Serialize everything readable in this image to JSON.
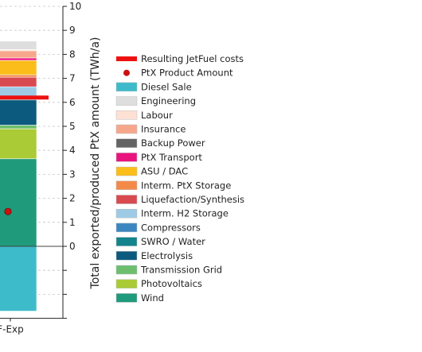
{
  "chart_data": {
    "type": "bar",
    "stacked": true,
    "ylabel": "Total exported/produced PtX amount (TWh/a)",
    "ylim": [
      -3,
      10
    ],
    "yticks": [
      0,
      1,
      2,
      3,
      4,
      5,
      6,
      7,
      8,
      9,
      10
    ],
    "grid": "dashed-horizontal",
    "categories": [
      "F-Exp"
    ],
    "series": [
      {
        "name": "Diesel Sale",
        "color": "#3dbbcb",
        "values": [
          -2.7
        ]
      },
      {
        "name": "Wind",
        "color": "#1f9a7b",
        "values": [
          3.65
        ]
      },
      {
        "name": "Photovoltaics",
        "color": "#aacb35",
        "values": [
          1.25
        ]
      },
      {
        "name": "Transmission Grid",
        "color": "#6dbf6e",
        "values": [
          0.15
        ]
      },
      {
        "name": "Electrolysis",
        "color": "#0c5a7e",
        "values": [
          1.05
        ]
      },
      {
        "name": "SWRO / Water",
        "color": "#13838c",
        "values": [
          0.05
        ]
      },
      {
        "name": "Compressors",
        "color": "#3b86c0",
        "values": [
          0.05
        ]
      },
      {
        "name": "Interm. H2 Storage",
        "color": "#9ecae6",
        "values": [
          0.45
        ]
      },
      {
        "name": "Liquefaction/Synthesis",
        "color": "#d94a50",
        "values": [
          0.4
        ]
      },
      {
        "name": "Interm. PtX Storage",
        "color": "#f38a4a",
        "values": [
          0.1
        ]
      },
      {
        "name": "ASU / DAC",
        "color": "#fbbd1a",
        "values": [
          0.6
        ]
      },
      {
        "name": "PtX Transport",
        "color": "#e9137e",
        "values": [
          0.1
        ]
      },
      {
        "name": "Backup Power",
        "color": "#646464",
        "values": [
          0.0
        ]
      },
      {
        "name": "Insurance",
        "color": "#f6a78b",
        "values": [
          0.3
        ]
      },
      {
        "name": "Labour",
        "color": "#fde1d4",
        "values": [
          0.05
        ]
      },
      {
        "name": "Engineering",
        "color": "#dedede",
        "values": [
          0.35
        ]
      }
    ],
    "markers": [
      {
        "name": "Resulting JetFuel costs",
        "kind": "line",
        "color": "#ee1111",
        "value": 6.2
      },
      {
        "name": "PtX Product Amount",
        "kind": "point",
        "color": "#cc1111",
        "value": 1.45
      }
    ],
    "legend": {
      "placement": "right",
      "entries": [
        {
          "label": "Resulting JetFuel costs",
          "kind": "line",
          "color": "#ee1111"
        },
        {
          "label": "PtX Product Amount",
          "kind": "point",
          "color": "#cc1111"
        },
        {
          "label": "Diesel Sale",
          "kind": "patch",
          "color": "#3dbbcb"
        },
        {
          "label": "Engineering",
          "kind": "patch",
          "color": "#dedede"
        },
        {
          "label": "Labour",
          "kind": "patch",
          "color": "#fde1d4"
        },
        {
          "label": "Insurance",
          "kind": "patch",
          "color": "#f6a78b"
        },
        {
          "label": "Backup Power",
          "kind": "patch",
          "color": "#646464"
        },
        {
          "label": "PtX Transport",
          "kind": "patch",
          "color": "#e9137e"
        },
        {
          "label": "ASU / DAC",
          "kind": "patch",
          "color": "#fbbd1a"
        },
        {
          "label": "Interm. PtX Storage",
          "kind": "patch",
          "color": "#f38a4a"
        },
        {
          "label": "Liquefaction/Synthesis",
          "kind": "patch",
          "color": "#d94a50"
        },
        {
          "label": "Interm. H2 Storage",
          "kind": "patch",
          "color": "#9ecae6"
        },
        {
          "label": "Compressors",
          "kind": "patch",
          "color": "#3b86c0"
        },
        {
          "label": "SWRO / Water",
          "kind": "patch",
          "color": "#13838c"
        },
        {
          "label": "Electrolysis",
          "kind": "patch",
          "color": "#0c5a7e"
        },
        {
          "label": "Transmission Grid",
          "kind": "patch",
          "color": "#6dbf6e"
        },
        {
          "label": "Photovoltaics",
          "kind": "patch",
          "color": "#aacb35"
        },
        {
          "label": "Wind",
          "kind": "patch",
          "color": "#1f9a7b"
        }
      ]
    }
  }
}
